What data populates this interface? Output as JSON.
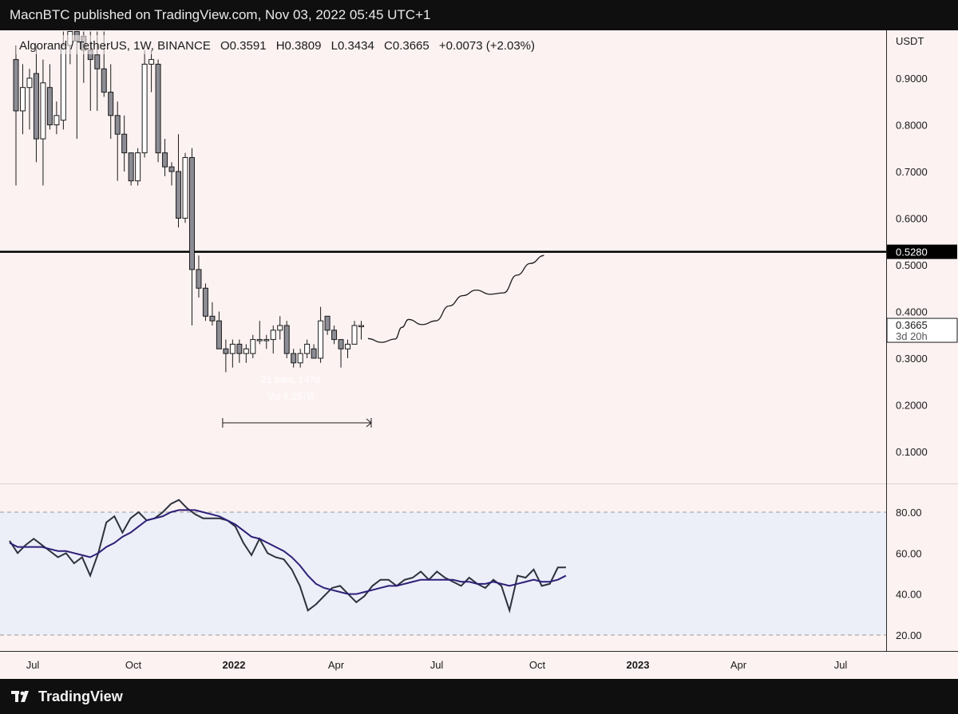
{
  "header": {
    "published_text": "MacnBTC published on TradingView.com, Nov 03, 2022 05:45 UTC+1"
  },
  "footer": {
    "brand": "TradingView"
  },
  "legend": {
    "symbol": "Algorand / TetherUS, 1W, BINANCE",
    "open": "O0.3591",
    "high": "H0.3809",
    "low": "L0.3434",
    "close": "C0.3665",
    "change": "+0.0073 (+2.03%)"
  },
  "price_axis": {
    "currency": "USDT",
    "ticks": [
      "0.9000",
      "0.8000",
      "0.7000",
      "0.6000",
      "0.5000",
      "0.4000",
      "0.3000",
      "0.2000",
      "0.1000"
    ],
    "level_label": "0.5280",
    "last_price_label": "0.3665",
    "countdown_label": "3d 20h"
  },
  "osc_axis": {
    "ticks": [
      "80.00",
      "60.00",
      "40.00",
      "20.00"
    ]
  },
  "time_axis": {
    "labels": [
      {
        "text": "Jul",
        "bold": false
      },
      {
        "text": "Oct",
        "bold": false
      },
      {
        "text": "2022",
        "bold": true
      },
      {
        "text": "Apr",
        "bold": false
      },
      {
        "text": "Jul",
        "bold": false
      },
      {
        "text": "Oct",
        "bold": false
      },
      {
        "text": "2023",
        "bold": true
      },
      {
        "text": "Apr",
        "bold": false
      },
      {
        "text": "Jul",
        "bold": false
      }
    ]
  },
  "measure": {
    "bars_text": "21 bars, 147d",
    "vol_text": "Vol 6.257B"
  },
  "colors": {
    "chart_bg": "#fdf2f2",
    "osc_band": "#eceef8",
    "candle_up": "#ffffff",
    "candle_down": "#8c8c94",
    "stroke": "#1a1a1a",
    "ma": "#2e1e78"
  },
  "chart_data": [
    {
      "type": "candlestick",
      "title": "Algorand / TetherUS, 1W, BINANCE",
      "ylabel": "USDT",
      "ylim": [
        0.0,
        1.0
      ],
      "horizontal_line": 0.528,
      "candles": [
        {
          "o": 0.94,
          "h": 0.97,
          "l": 0.67,
          "c": 0.83
        },
        {
          "o": 0.83,
          "h": 0.93,
          "l": 0.78,
          "c": 0.88
        },
        {
          "o": 0.88,
          "h": 0.92,
          "l": 0.79,
          "c": 0.9
        },
        {
          "o": 0.91,
          "h": 0.97,
          "l": 0.72,
          "c": 0.77
        },
        {
          "o": 0.77,
          "h": 0.94,
          "l": 0.67,
          "c": 0.89
        },
        {
          "o": 0.88,
          "h": 0.93,
          "l": 0.79,
          "c": 0.8
        },
        {
          "o": 0.8,
          "h": 0.85,
          "l": 0.78,
          "c": 0.82
        },
        {
          "o": 0.81,
          "h": 1.0,
          "l": 0.79,
          "c": 0.97
        },
        {
          "o": 0.97,
          "h": 1.0,
          "l": 0.93,
          "c": 1.0
        },
        {
          "o": 1.0,
          "h": 1.0,
          "l": 0.77,
          "c": 0.98
        },
        {
          "o": 0.99,
          "h": 1.0,
          "l": 0.89,
          "c": 0.96
        },
        {
          "o": 0.96,
          "h": 1.0,
          "l": 0.83,
          "c": 0.94
        },
        {
          "o": 0.95,
          "h": 1.0,
          "l": 0.83,
          "c": 0.92
        },
        {
          "o": 0.92,
          "h": 1.0,
          "l": 0.86,
          "c": 0.87
        },
        {
          "o": 0.87,
          "h": 0.93,
          "l": 0.77,
          "c": 0.82
        },
        {
          "o": 0.82,
          "h": 0.85,
          "l": 0.68,
          "c": 0.78
        },
        {
          "o": 0.78,
          "h": 0.82,
          "l": 0.7,
          "c": 0.74
        },
        {
          "o": 0.74,
          "h": 0.74,
          "l": 0.67,
          "c": 0.68
        },
        {
          "o": 0.68,
          "h": 0.75,
          "l": 0.67,
          "c": 0.74
        },
        {
          "o": 0.74,
          "h": 0.96,
          "l": 0.73,
          "c": 0.93
        },
        {
          "o": 0.93,
          "h": 0.96,
          "l": 0.87,
          "c": 0.94
        },
        {
          "o": 0.93,
          "h": 0.94,
          "l": 0.72,
          "c": 0.74
        },
        {
          "o": 0.74,
          "h": 0.77,
          "l": 0.69,
          "c": 0.71
        },
        {
          "o": 0.71,
          "h": 0.72,
          "l": 0.67,
          "c": 0.7
        },
        {
          "o": 0.7,
          "h": 0.78,
          "l": 0.58,
          "c": 0.6
        },
        {
          "o": 0.6,
          "h": 0.74,
          "l": 0.59,
          "c": 0.73
        },
        {
          "o": 0.73,
          "h": 0.75,
          "l": 0.37,
          "c": 0.49
        },
        {
          "o": 0.49,
          "h": 0.52,
          "l": 0.43,
          "c": 0.45
        },
        {
          "o": 0.45,
          "h": 0.46,
          "l": 0.38,
          "c": 0.39
        },
        {
          "o": 0.39,
          "h": 0.42,
          "l": 0.37,
          "c": 0.38
        },
        {
          "o": 0.38,
          "h": 0.4,
          "l": 0.32,
          "c": 0.32
        },
        {
          "o": 0.32,
          "h": 0.34,
          "l": 0.27,
          "c": 0.31
        },
        {
          "o": 0.31,
          "h": 0.34,
          "l": 0.28,
          "c": 0.33
        },
        {
          "o": 0.33,
          "h": 0.34,
          "l": 0.29,
          "c": 0.31
        },
        {
          "o": 0.31,
          "h": 0.33,
          "l": 0.29,
          "c": 0.32
        },
        {
          "o": 0.31,
          "h": 0.35,
          "l": 0.3,
          "c": 0.34
        },
        {
          "o": 0.34,
          "h": 0.38,
          "l": 0.33,
          "c": 0.34
        },
        {
          "o": 0.34,
          "h": 0.35,
          "l": 0.32,
          "c": 0.34
        },
        {
          "o": 0.34,
          "h": 0.37,
          "l": 0.31,
          "c": 0.36
        },
        {
          "o": 0.36,
          "h": 0.39,
          "l": 0.34,
          "c": 0.37
        },
        {
          "o": 0.37,
          "h": 0.38,
          "l": 0.3,
          "c": 0.31
        },
        {
          "o": 0.31,
          "h": 0.32,
          "l": 0.28,
          "c": 0.29
        },
        {
          "o": 0.29,
          "h": 0.32,
          "l": 0.28,
          "c": 0.31
        },
        {
          "o": 0.31,
          "h": 0.34,
          "l": 0.3,
          "c": 0.33
        },
        {
          "o": 0.32,
          "h": 0.33,
          "l": 0.3,
          "c": 0.3
        },
        {
          "o": 0.3,
          "h": 0.41,
          "l": 0.29,
          "c": 0.38
        },
        {
          "o": 0.39,
          "h": 0.39,
          "l": 0.35,
          "c": 0.36
        },
        {
          "o": 0.36,
          "h": 0.37,
          "l": 0.33,
          "c": 0.34
        },
        {
          "o": 0.34,
          "h": 0.34,
          "l": 0.28,
          "c": 0.32
        },
        {
          "o": 0.32,
          "h": 0.34,
          "l": 0.3,
          "c": 0.33
        },
        {
          "o": 0.33,
          "h": 0.38,
          "l": 0.33,
          "c": 0.37
        },
        {
          "o": 0.37,
          "h": 0.38,
          "l": 0.34,
          "c": 0.37
        }
      ],
      "projection": [
        [
          52,
          0.342
        ],
        [
          54,
          0.334
        ],
        [
          56,
          0.341
        ],
        [
          57,
          0.366
        ],
        [
          58,
          0.383
        ],
        [
          60,
          0.372
        ],
        [
          62,
          0.38
        ],
        [
          64,
          0.412
        ],
        [
          66,
          0.434
        ],
        [
          68,
          0.446
        ],
        [
          70,
          0.437
        ],
        [
          72,
          0.44
        ],
        [
          74,
          0.478
        ],
        [
          76,
          0.503
        ],
        [
          78,
          0.52
        ]
      ],
      "measure_range": [
        31,
        52
      ]
    },
    {
      "type": "line",
      "ylim": [
        10,
        90
      ],
      "band": [
        20,
        80
      ],
      "series": [
        {
          "values": [
            66,
            60,
            64,
            67,
            64,
            61,
            58,
            60,
            55,
            58,
            49,
            60,
            75,
            78,
            70,
            77,
            80,
            76,
            77,
            80,
            84,
            86,
            82,
            79,
            77,
            77,
            77,
            76,
            73,
            65,
            59,
            67,
            60,
            58,
            57,
            52,
            44,
            32,
            35,
            39,
            43,
            44,
            40,
            36,
            39,
            44,
            47,
            47,
            44,
            47,
            48,
            51,
            47,
            51,
            48,
            46,
            44,
            48,
            45,
            43,
            47,
            44,
            32,
            49,
            48,
            52,
            44,
            45,
            53,
            53
          ]
        },
        {
          "values": [
            65,
            63,
            63,
            63,
            63,
            62,
            61,
            61,
            60,
            59,
            58,
            60,
            63,
            65,
            68,
            70,
            73,
            76,
            77,
            78,
            80,
            81,
            81,
            81,
            80,
            79,
            78,
            76,
            74,
            71,
            68,
            67,
            65,
            63,
            61,
            58,
            54,
            49,
            45,
            43,
            42,
            41,
            40,
            40,
            41,
            42,
            43,
            44,
            44,
            45,
            46,
            47,
            47,
            47,
            47,
            47,
            46,
            46,
            45,
            45,
            46,
            45,
            44,
            45,
            46,
            47,
            46,
            46,
            47,
            49
          ]
        }
      ]
    }
  ]
}
